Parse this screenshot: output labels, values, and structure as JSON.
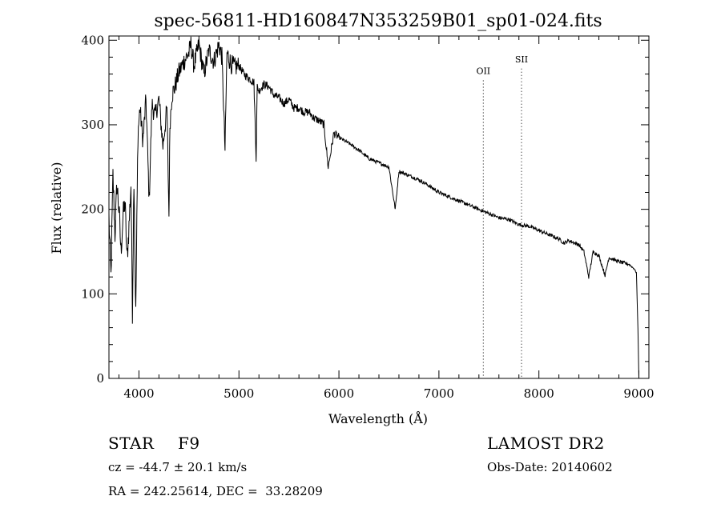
{
  "chart_data": {
    "type": "line",
    "title": "spec-56811-HD160847N353259B01_sp01-024.fits",
    "xlabel": "Wavelength (Å)",
    "ylabel": "Flux (relative)",
    "xlim": [
      3700,
      9100
    ],
    "ylim": [
      0,
      405
    ],
    "x_ticks": [
      4000,
      5000,
      6000,
      7000,
      8000,
      9000
    ],
    "y_ticks": [
      0,
      100,
      200,
      300,
      400
    ],
    "grid": false,
    "line_color": "#000000",
    "series": [
      {
        "x": [
          3700,
          3720,
          3740,
          3760,
          3780,
          3800,
          3820,
          3840,
          3860,
          3880,
          3900,
          3920,
          3935,
          3950,
          3968,
          3990,
          4010,
          4040,
          4070,
          4102,
          4130,
          4160,
          4200,
          4240,
          4280,
          4300,
          4310,
          4330,
          4360,
          4400,
          4450,
          4500,
          4520,
          4550,
          4600,
          4650,
          4700,
          4750,
          4800,
          4830,
          4861,
          4880,
          4920,
          4960,
          5000,
          5050,
          5100,
          5150,
          5172,
          5183,
          5200,
          5250,
          5300,
          5350,
          5400,
          5450,
          5500,
          5550,
          5600,
          5650,
          5700,
          5750,
          5800,
          5850,
          5893,
          5950,
          6000,
          6100,
          6200,
          6300,
          6400,
          6500,
          6563,
          6600,
          6700,
          6800,
          6900,
          7000,
          7100,
          7200,
          7300,
          7400,
          7500,
          7600,
          7700,
          7800,
          7900,
          8000,
          8100,
          8200,
          8250,
          8300,
          8400,
          8450,
          8498,
          8542,
          8600,
          8662,
          8700,
          8800,
          8900,
          8950,
          8975,
          8990,
          9000
        ],
        "y": [
          190,
          120,
          240,
          170,
          230,
          200,
          150,
          190,
          210,
          140,
          180,
          230,
          80,
          240,
          75,
          290,
          320,
          280,
          330,
          210,
          325,
          310,
          330,
          275,
          320,
          192,
          300,
          335,
          345,
          362,
          375,
          385,
          395,
          370,
          395,
          360,
          388,
          375,
          395,
          380,
          270,
          385,
          372,
          368,
          370,
          360,
          355,
          350,
          260,
          345,
          340,
          348,
          345,
          335,
          332,
          325,
          330,
          320,
          320,
          315,
          315,
          308,
          305,
          300,
          250,
          290,
          285,
          278,
          270,
          260,
          255,
          250,
          200,
          245,
          240,
          235,
          228,
          220,
          215,
          210,
          205,
          200,
          195,
          190,
          188,
          182,
          180,
          175,
          170,
          165,
          160,
          163,
          158,
          150,
          120,
          150,
          145,
          122,
          143,
          138,
          135,
          130,
          125,
          60,
          0
        ]
      }
    ],
    "annotations": [
      {
        "label": "OII",
        "x": 7444,
        "y": 360,
        "line": "dotted"
      },
      {
        "label": "SII",
        "x": 7826,
        "y": 374,
        "line": "dotted"
      }
    ]
  },
  "info": {
    "object_class": "STAR",
    "subclass": "F9",
    "redshift": "cz = -44.7 ± 20.1 km/s",
    "coords": "RA = 242.25614, DEC =  33.28209",
    "survey": "LAMOST DR2",
    "obs_date": "Obs-Date: 20140602"
  }
}
